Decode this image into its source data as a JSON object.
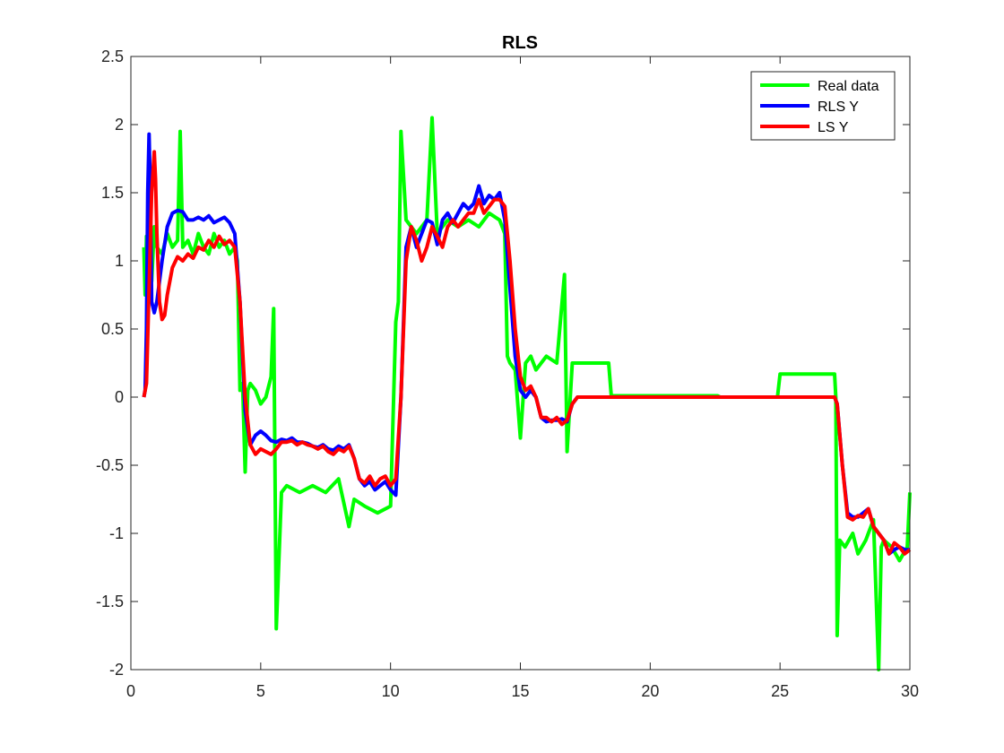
{
  "chart_data": {
    "type": "line",
    "title": "RLS",
    "xlabel": "",
    "ylabel": "",
    "xlim": [
      0,
      30
    ],
    "ylim": [
      -2,
      2.5
    ],
    "xticks": [
      0,
      5,
      10,
      15,
      20,
      25,
      30
    ],
    "xtick_labels": [
      "0",
      "5",
      "10",
      "15",
      "20",
      "25",
      "30"
    ],
    "yticks": [
      -2,
      -1.5,
      -1,
      -0.5,
      0,
      0.5,
      1,
      1.5,
      2,
      2.5
    ],
    "ytick_labels": [
      "-2",
      "-1.5",
      "-1",
      "-0.5",
      "0",
      "0.5",
      "1",
      "1.5",
      "2",
      "2.5"
    ],
    "grid": false,
    "legend_position": "top-right",
    "series": [
      {
        "name": "Real data",
        "color": "#00ff00",
        "x": [
          0.5,
          0.55,
          0.6,
          0.7,
          0.8,
          0.9,
          1.0,
          1.2,
          1.4,
          1.6,
          1.8,
          1.9,
          2.0,
          2.2,
          2.4,
          2.6,
          2.8,
          3.0,
          3.2,
          3.4,
          3.6,
          3.8,
          4.0,
          4.1,
          4.2,
          4.3,
          4.4,
          4.5,
          4.6,
          4.8,
          5.0,
          5.2,
          5.4,
          5.5,
          5.6,
          5.8,
          6.0,
          6.5,
          7.0,
          7.5,
          8.0,
          8.4,
          8.6,
          9.0,
          9.5,
          10.0,
          10.2,
          10.3,
          10.4,
          10.6,
          10.8,
          11.0,
          11.4,
          11.6,
          11.8,
          12.2,
          12.6,
          13.0,
          13.4,
          13.8,
          14.2,
          14.4,
          14.5,
          14.6,
          14.8,
          15.0,
          15.2,
          15.4,
          15.6,
          15.8,
          16.0,
          16.4,
          16.7,
          16.8,
          17.0,
          18.4,
          18.5,
          22.6,
          22.7,
          24.9,
          25.0,
          27.1,
          27.15,
          27.2,
          27.3,
          27.5,
          27.8,
          28.0,
          28.3,
          28.6,
          28.8,
          28.9,
          29.0,
          29.3,
          29.6,
          29.9,
          30.0
        ],
        "values": [
          1.1,
          0.75,
          1.18,
          1.05,
          0.85,
          1.25,
          1.1,
          1.05,
          1.2,
          1.1,
          1.15,
          1.95,
          1.1,
          1.15,
          1.05,
          1.2,
          1.1,
          1.05,
          1.2,
          1.1,
          1.15,
          1.05,
          1.1,
          1.0,
          0.05,
          0.1,
          -0.55,
          0.05,
          0.1,
          0.05,
          -0.05,
          0.0,
          0.15,
          0.65,
          -1.7,
          -0.7,
          -0.65,
          -0.7,
          -0.65,
          -0.7,
          -0.6,
          -0.95,
          -0.75,
          -0.8,
          -0.85,
          -0.8,
          0.55,
          0.7,
          1.95,
          1.3,
          1.25,
          1.2,
          1.3,
          2.05,
          1.2,
          1.3,
          1.25,
          1.3,
          1.25,
          1.35,
          1.3,
          1.2,
          0.3,
          0.25,
          0.2,
          -0.3,
          0.25,
          0.3,
          0.2,
          0.25,
          0.3,
          0.25,
          0.9,
          -0.4,
          0.25,
          0.25,
          0.01,
          0.01,
          0.0,
          0.0,
          0.17,
          0.17,
          0.0,
          -1.75,
          -1.05,
          -1.1,
          -1.0,
          -1.15,
          -1.05,
          -0.9,
          -2.0,
          -1.1,
          -1.05,
          -1.1,
          -1.2,
          -1.1,
          -0.7
        ]
      },
      {
        "name": "RLS Y",
        "color": "#0000ff",
        "x": [
          0.5,
          0.55,
          0.6,
          0.65,
          0.7,
          0.75,
          0.8,
          0.9,
          1.0,
          1.1,
          1.2,
          1.4,
          1.6,
          1.8,
          2.0,
          2.2,
          2.4,
          2.6,
          2.8,
          3.0,
          3.2,
          3.4,
          3.6,
          3.8,
          4.0,
          4.2,
          4.4,
          4.6,
          4.8,
          5.0,
          5.2,
          5.4,
          5.6,
          5.8,
          6.0,
          6.2,
          6.4,
          6.6,
          6.8,
          7.0,
          7.2,
          7.4,
          7.6,
          7.8,
          8.0,
          8.2,
          8.4,
          8.6,
          8.8,
          9.0,
          9.2,
          9.4,
          9.6,
          9.8,
          10.0,
          10.2,
          10.4,
          10.6,
          10.8,
          11.0,
          11.2,
          11.4,
          11.6,
          11.8,
          12.0,
          12.2,
          12.4,
          12.6,
          12.8,
          13.0,
          13.2,
          13.4,
          13.6,
          13.8,
          14.0,
          14.2,
          14.4,
          14.6,
          14.8,
          15.0,
          15.2,
          15.4,
          15.6,
          15.8,
          16.0,
          16.2,
          16.4,
          16.6,
          16.8,
          17.0,
          17.2,
          17.4,
          17.6,
          18.0,
          20.0,
          22.0,
          24.0,
          26.0,
          27.1,
          27.2,
          27.4,
          27.6,
          27.8,
          28.0,
          28.2,
          28.4,
          28.6,
          28.8,
          29.0,
          29.2,
          29.4,
          29.6,
          29.8,
          30.0
        ],
        "values": [
          0.0,
          0.05,
          0.5,
          1.5,
          1.93,
          1.5,
          0.7,
          0.62,
          0.7,
          0.85,
          1.0,
          1.25,
          1.35,
          1.37,
          1.36,
          1.3,
          1.3,
          1.32,
          1.3,
          1.33,
          1.28,
          1.3,
          1.32,
          1.28,
          1.2,
          0.7,
          -0.1,
          -0.35,
          -0.28,
          -0.25,
          -0.28,
          -0.32,
          -0.33,
          -0.31,
          -0.32,
          -0.3,
          -0.33,
          -0.33,
          -0.34,
          -0.36,
          -0.37,
          -0.35,
          -0.38,
          -0.39,
          -0.36,
          -0.38,
          -0.35,
          -0.45,
          -0.6,
          -0.65,
          -0.62,
          -0.68,
          -0.65,
          -0.62,
          -0.68,
          -0.72,
          0.0,
          1.1,
          1.25,
          1.1,
          1.2,
          1.3,
          1.28,
          1.12,
          1.3,
          1.35,
          1.28,
          1.35,
          1.42,
          1.38,
          1.42,
          1.55,
          1.42,
          1.48,
          1.45,
          1.5,
          1.3,
          0.8,
          0.3,
          0.05,
          0.0,
          0.05,
          0.0,
          -0.15,
          -0.18,
          -0.17,
          -0.17,
          -0.16,
          -0.18,
          -0.05,
          0.0,
          0.0,
          0.0,
          0.0,
          0.0,
          0.0,
          0.0,
          0.0,
          0.0,
          -0.05,
          -0.5,
          -0.85,
          -0.88,
          -0.88,
          -0.85,
          -0.82,
          -0.95,
          -1.0,
          -1.05,
          -1.15,
          -1.12,
          -1.1,
          -1.12,
          -1.12
        ]
      },
      {
        "name": "LS Y",
        "color": "#ff0000",
        "x": [
          0.5,
          0.6,
          0.7,
          0.8,
          0.9,
          0.95,
          1.0,
          1.1,
          1.2,
          1.3,
          1.4,
          1.6,
          1.8,
          2.0,
          2.2,
          2.4,
          2.6,
          2.8,
          3.0,
          3.2,
          3.4,
          3.6,
          3.8,
          4.0,
          4.2,
          4.4,
          4.6,
          4.8,
          5.0,
          5.2,
          5.4,
          5.6,
          5.8,
          6.0,
          6.2,
          6.4,
          6.6,
          6.8,
          7.0,
          7.2,
          7.4,
          7.6,
          7.8,
          8.0,
          8.2,
          8.4,
          8.6,
          8.8,
          9.0,
          9.2,
          9.4,
          9.6,
          9.8,
          10.0,
          10.2,
          10.4,
          10.6,
          10.8,
          11.0,
          11.2,
          11.4,
          11.6,
          11.8,
          12.0,
          12.2,
          12.4,
          12.6,
          12.8,
          13.0,
          13.2,
          13.4,
          13.6,
          13.8,
          14.0,
          14.2,
          14.4,
          14.6,
          14.8,
          15.0,
          15.2,
          15.4,
          15.6,
          15.8,
          16.0,
          16.2,
          16.4,
          16.6,
          16.8,
          17.0,
          17.2,
          17.4,
          17.6,
          18.0,
          20.0,
          22.0,
          24.0,
          26.0,
          27.1,
          27.2,
          27.4,
          27.6,
          27.8,
          28.0,
          28.2,
          28.4,
          28.6,
          28.8,
          29.0,
          29.2,
          29.4,
          29.6,
          29.8,
          30.0
        ],
        "values": [
          0.0,
          0.1,
          0.8,
          1.5,
          1.8,
          1.6,
          1.2,
          0.7,
          0.57,
          0.6,
          0.75,
          0.95,
          1.03,
          1.0,
          1.05,
          1.02,
          1.1,
          1.08,
          1.15,
          1.1,
          1.18,
          1.12,
          1.15,
          1.1,
          0.7,
          0.0,
          -0.35,
          -0.42,
          -0.38,
          -0.4,
          -0.42,
          -0.38,
          -0.33,
          -0.33,
          -0.32,
          -0.35,
          -0.33,
          -0.35,
          -0.36,
          -0.38,
          -0.36,
          -0.4,
          -0.42,
          -0.38,
          -0.4,
          -0.36,
          -0.45,
          -0.6,
          -0.63,
          -0.58,
          -0.65,
          -0.6,
          -0.58,
          -0.65,
          -0.6,
          0.0,
          1.0,
          1.25,
          1.15,
          1.0,
          1.1,
          1.25,
          1.18,
          1.1,
          1.25,
          1.3,
          1.25,
          1.3,
          1.35,
          1.35,
          1.45,
          1.35,
          1.4,
          1.45,
          1.45,
          1.4,
          1.0,
          0.5,
          0.15,
          0.05,
          0.08,
          0.0,
          -0.15,
          -0.15,
          -0.18,
          -0.15,
          -0.2,
          -0.17,
          -0.05,
          0.0,
          0.0,
          0.0,
          0.0,
          0.0,
          0.0,
          0.0,
          0.0,
          0.0,
          -0.05,
          -0.5,
          -0.88,
          -0.9,
          -0.87,
          -0.88,
          -0.82,
          -0.95,
          -1.0,
          -1.05,
          -1.15,
          -1.07,
          -1.1,
          -1.15,
          -1.12
        ]
      }
    ]
  }
}
